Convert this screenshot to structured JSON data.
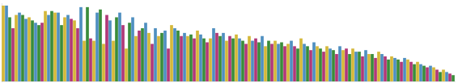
{
  "chart_data": {
    "type": "bar",
    "categories": [
      null,
      null,
      null,
      null,
      null,
      null,
      null,
      null,
      null,
      null,
      null,
      null,
      null,
      null,
      null,
      null,
      null,
      null,
      null,
      null,
      null,
      null,
      null,
      null,
      null,
      null,
      null,
      null,
      null,
      null,
      null,
      null,
      null,
      null,
      null,
      null,
      null,
      null,
      null,
      null,
      null,
      null,
      null,
      null,
      null,
      null,
      null,
      null,
      null,
      null,
      null,
      null,
      null,
      null,
      null,
      null,
      null,
      null,
      null,
      null,
      null,
      null,
      null,
      null,
      null,
      null,
      null,
      null,
      null,
      null,
      null,
      null,
      null,
      null,
      null,
      null,
      null,
      null,
      null,
      null,
      null,
      null,
      null,
      null,
      null,
      null,
      null,
      null,
      null,
      null,
      null,
      null,
      null,
      null,
      null,
      null,
      null,
      null,
      null,
      null,
      null,
      null,
      null,
      null,
      null,
      null,
      null,
      null,
      null,
      null,
      null,
      null,
      null,
      null,
      null,
      null,
      null,
      null,
      null,
      null,
      null,
      null,
      null,
      null,
      null,
      null,
      null,
      null,
      null,
      null,
      null,
      null,
      null,
      null,
      null,
      null,
      null,
      null,
      null,
      null
    ],
    "values": [
      97,
      97,
      82,
      68,
      85,
      88,
      85,
      80,
      82,
      78,
      75,
      72,
      75,
      90,
      85,
      90,
      88,
      88,
      72,
      82,
      85,
      80,
      78,
      68,
      95,
      52,
      95,
      55,
      52,
      88,
      92,
      48,
      85,
      78,
      52,
      82,
      88,
      72,
      42,
      75,
      82,
      58,
      65,
      68,
      75,
      62,
      48,
      68,
      58,
      62,
      65,
      42,
      72,
      68,
      65,
      58,
      62,
      58,
      60,
      55,
      65,
      60,
      55,
      50,
      55,
      68,
      62,
      58,
      62,
      52,
      58,
      55,
      60,
      55,
      52,
      48,
      58,
      52,
      55,
      50,
      58,
      45,
      52,
      48,
      52,
      48,
      50,
      45,
      48,
      52,
      45,
      42,
      55,
      48,
      45,
      40,
      50,
      45,
      42,
      38,
      45,
      42,
      40,
      35,
      45,
      40,
      42,
      35,
      42,
      38,
      38,
      32,
      40,
      35,
      35,
      30,
      38,
      35,
      32,
      28,
      32,
      30,
      28,
      25,
      30,
      28,
      25,
      22,
      25,
      22,
      20,
      18,
      20,
      18,
      15,
      12,
      15,
      12,
      10,
      8
    ],
    "colors": [
      "#d4b83a",
      "#4f8fc0",
      "#3a8c3a",
      "#b03878",
      "#d4b83a",
      "#4f8fc0",
      "#3a8c3a",
      "#4f8fc0",
      "#d4b83a",
      "#3a8c3a",
      "#4f8fc0",
      "#3a8c3a",
      "#b03878",
      "#d4b83a",
      "#4f8fc0",
      "#3a8c3a",
      "#d4b83a",
      "#4f8fc0",
      "#3a8c3a",
      "#d4b83a",
      "#4f8fc0",
      "#b03878",
      "#d4b83a",
      "#b03878",
      "#4f8fc0",
      "#d4b83a",
      "#3a8c3a",
      "#b03878",
      "#d4b83a",
      "#4f8fc0",
      "#3a8c3a",
      "#d4b83a",
      "#b03878",
      "#4f8fc0",
      "#d4b83a",
      "#3a8c3a",
      "#4f8fc0",
      "#b03878",
      "#d4b83a",
      "#3a8c3a",
      "#4f8fc0",
      "#d4b83a",
      "#b03878",
      "#3a8c3a",
      "#4f8fc0",
      "#d4b83a",
      "#b03878",
      "#4f8fc0",
      "#d4b83a",
      "#3a8c3a",
      "#4f8fc0",
      "#b03878",
      "#d4b83a",
      "#4f8fc0",
      "#3a8c3a",
      "#b03878",
      "#4f8fc0",
      "#d4b83a",
      "#3a8c3a",
      "#b03878",
      "#d4b83a",
      "#4f8fc0",
      "#3a8c3a",
      "#b03878",
      "#d4b83a",
      "#4f8fc0",
      "#b03878",
      "#3a8c3a",
      "#4f8fc0",
      "#d4b83a",
      "#b03878",
      "#3a8c3a",
      "#d4b83a",
      "#4f8fc0",
      "#3a8c3a",
      "#b03878",
      "#d4b83a",
      "#4f8fc0",
      "#b03878",
      "#3a8c3a",
      "#4f8fc0",
      "#d4b83a",
      "#3a8c3a",
      "#b03878",
      "#d4b83a",
      "#4f8fc0",
      "#3a8c3a",
      "#b03878",
      "#d4b83a",
      "#4f8fc0",
      "#b03878",
      "#3a8c3a",
      "#d4b83a",
      "#4f8fc0",
      "#3a8c3a",
      "#b03878",
      "#4f8fc0",
      "#d4b83a",
      "#3a8c3a",
      "#b03878",
      "#d4b83a",
      "#4f8fc0",
      "#3a8c3a",
      "#b03878",
      "#4f8fc0",
      "#d4b83a",
      "#b03878",
      "#3a8c3a",
      "#d4b83a",
      "#4f8fc0",
      "#3a8c3a",
      "#b03878",
      "#4f8fc0",
      "#d4b83a",
      "#3a8c3a",
      "#b03878",
      "#d4b83a",
      "#4f8fc0",
      "#b03878",
      "#3a8c3a",
      "#d4b83a",
      "#4f8fc0",
      "#3a8c3a",
      "#b03878",
      "#4f8fc0",
      "#d4b83a",
      "#b03878",
      "#3a8c3a",
      "#d4b83a",
      "#4f8fc0",
      "#3a8c3a",
      "#b03878",
      "#4f8fc0",
      "#d4b83a",
      "#b03878",
      "#3a8c3a",
      "#d4b83a",
      "#4f8fc0",
      "#b03878",
      "#3a8c3a"
    ],
    "ylim": [
      0,
      100
    ],
    "grid": false,
    "tick_labels": false
  }
}
